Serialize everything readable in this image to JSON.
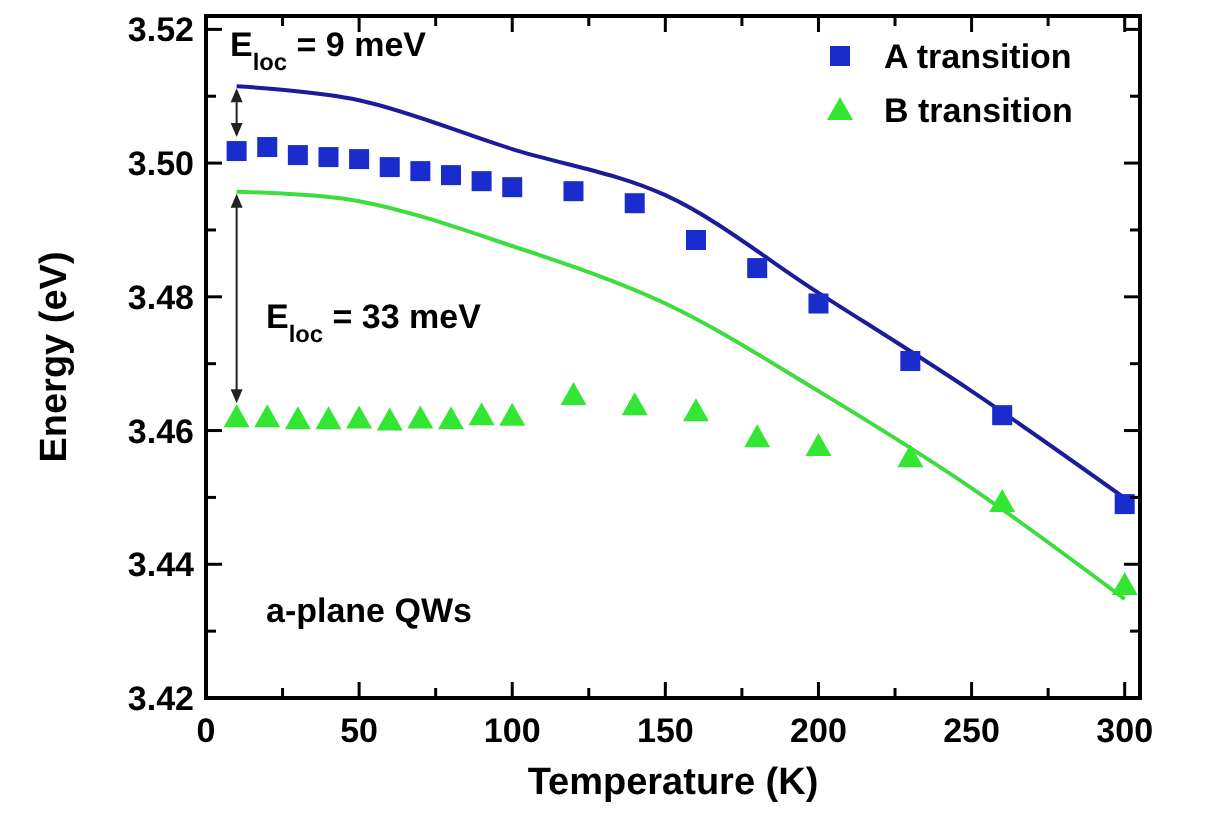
{
  "chart_data": {
    "type": "scatter",
    "xlabel": "Temperature (K)",
    "ylabel": "Energy (eV)",
    "xlim": [
      0,
      305
    ],
    "ylim": [
      3.42,
      3.522
    ],
    "xticks": [
      0,
      {
        "value": 25,
        "label": null
      },
      50,
      {
        "value": 75,
        "label": null
      },
      100,
      {
        "value": 125,
        "label": null
      },
      150,
      {
        "value": 175,
        "label": null
      },
      200,
      {
        "value": 225,
        "label": null
      },
      250,
      {
        "value": 275,
        "label": null
      },
      300
    ],
    "yticks": [
      3.42,
      {
        "value": 3.43,
        "label": null
      },
      3.44,
      {
        "value": 3.45,
        "label": null
      },
      3.46,
      {
        "value": 3.47,
        "label": null
      },
      3.48,
      {
        "value": 3.49,
        "label": null
      },
      {
        "value": 3.5,
        "label": "3.50"
      },
      {
        "value": 3.51,
        "label": null
      },
      3.52
    ],
    "grid": false,
    "legend": "top right",
    "series": [
      {
        "name": "A transition",
        "marker": "square",
        "color": "#1a2ccc",
        "x": [
          10,
          20,
          30,
          40,
          50,
          60,
          70,
          80,
          90,
          100,
          120,
          140,
          160,
          180,
          200,
          230,
          260,
          300
        ],
        "values": [
          3.5018,
          3.5024,
          3.5012,
          3.5009,
          3.5006,
          3.4994,
          3.4988,
          3.4982,
          3.4973,
          3.4964,
          3.4958,
          3.494,
          3.4885,
          3.4843,
          3.479,
          3.4704,
          3.4623,
          3.449
        ]
      },
      {
        "name": "B transition",
        "marker": "triangle",
        "color": "#33e633",
        "x": [
          10,
          20,
          30,
          40,
          50,
          60,
          70,
          80,
          90,
          100,
          120,
          140,
          160,
          180,
          200,
          230,
          260,
          300
        ],
        "values": [
          3.462,
          3.462,
          3.4617,
          3.4617,
          3.4618,
          3.4615,
          3.4618,
          3.4617,
          3.4623,
          3.4622,
          3.4653,
          3.4638,
          3.4629,
          3.459,
          3.4577,
          3.456,
          3.4493,
          3.4369
        ]
      },
      {
        "type": "line",
        "marker": "none",
        "line_style": "solid",
        "color": "#1c1c9a",
        "x": [
          10,
          50,
          100,
          150,
          200,
          250,
          300
        ],
        "values": [
          3.5115,
          3.5094,
          3.5021,
          3.4952,
          3.4806,
          3.4659,
          3.4499
        ]
      },
      {
        "type": "line",
        "marker": "none",
        "line_style": "solid",
        "color": "#3fdc3f",
        "x": [
          10,
          50,
          100,
          150,
          200,
          250,
          300
        ],
        "values": [
          3.4957,
          3.4943,
          3.4876,
          3.479,
          3.4659,
          3.4514,
          3.4348
        ]
      }
    ],
    "annotations": [
      "E$_{loc}$ = 9 meV",
      "E$_{loc}$ = 33 meV",
      "a-plane QWs"
    ]
  }
}
